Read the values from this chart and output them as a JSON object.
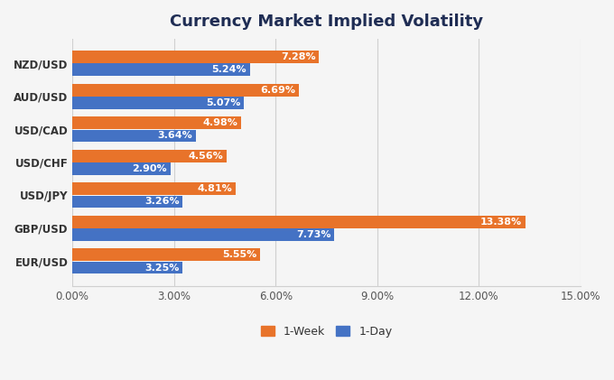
{
  "title": "Currency Market Implied Volatility",
  "categories": [
    "EUR/USD",
    "GBP/USD",
    "USD/JPY",
    "USD/CHF",
    "USD/CAD",
    "AUD/USD",
    "NZD/USD"
  ],
  "week_values": [
    5.55,
    13.38,
    4.81,
    4.56,
    4.98,
    6.69,
    7.28
  ],
  "day_values": [
    3.25,
    7.73,
    3.26,
    2.9,
    3.64,
    5.07,
    5.24
  ],
  "week_color": "#E8732A",
  "day_color": "#4472C4",
  "xlim": [
    0,
    15.0
  ],
  "xticks": [
    0,
    3.0,
    6.0,
    9.0,
    12.0,
    15.0
  ],
  "xtick_labels": [
    "0.00%",
    "3.00%",
    "6.00%",
    "9.00%",
    "12.00%",
    "15.00%"
  ],
  "legend_week": "1-Week",
  "legend_day": "1-Day",
  "background_color": "#f5f5f5",
  "plot_bg_color": "#f5f5f5",
  "title_color": "#1F2D54",
  "title_fontsize": 13,
  "bar_height": 0.38,
  "bar_gap": 0.01,
  "label_fontsize": 8,
  "ytick_fontsize": 8.5,
  "xtick_fontsize": 8.5,
  "grid_color": "#d0d0d0"
}
